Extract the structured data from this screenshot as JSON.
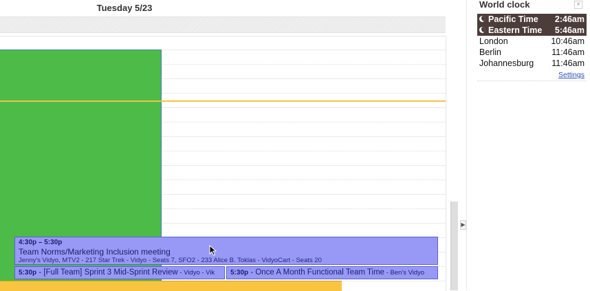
{
  "day_header": "Tuesday 5/23",
  "events": {
    "main": {
      "time": "4:30p – 5:30p",
      "title": "Team Norms/Marketing Inclusion meeting",
      "location": "Jenny's Vidyo, MTV2 - 217 Star Trek - Vidyo - Seats 7, SFO2 - 233 Alice B. Toklas - VidyoCart - Seats 20"
    },
    "sprint": {
      "time": "5:30p",
      "title": " - [Full Team] Sprint 3 Mid-Sprint Review",
      "location": " - Vidyo - Vik"
    },
    "functional": {
      "time": "5:30p",
      "title": " - Once A Month Functional Team Time",
      "location": " - Ben's Vidyo"
    }
  },
  "world_clock": {
    "title": "World clock",
    "close_label": "×",
    "settings_label": "Settings",
    "rows": [
      {
        "city": "Pacific Time",
        "time": "2:46am",
        "highlight": true
      },
      {
        "city": "Eastern Time",
        "time": "5:46am",
        "highlight": true
      },
      {
        "city": "London",
        "time": "10:46am",
        "highlight": false
      },
      {
        "city": "Berlin",
        "time": "11:46am",
        "highlight": false
      },
      {
        "city": "Johannesburg",
        "time": "11:46am",
        "highlight": false
      }
    ]
  },
  "collapse_label": "▶",
  "colors": {
    "green_event": "#4cbb47",
    "purple_event": "#9899f6",
    "orange_event": "#f9c541",
    "now_line": "#f6c24a",
    "clock_highlight": "#4d3d3a"
  }
}
